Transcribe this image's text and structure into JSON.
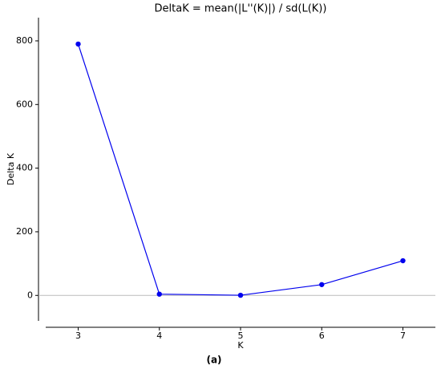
{
  "chart_data": {
    "type": "line",
    "title": "DeltaK = mean(|L''(K)|) / sd(L(K))",
    "x_label": "K",
    "y_label": "Delta K",
    "caption": "(a)",
    "x": [
      3,
      4,
      5,
      6,
      7
    ],
    "series": [
      {
        "name": "DeltaK",
        "color": "#0000ee",
        "values": [
          790,
          4,
          0.5,
          34,
          109
        ]
      }
    ],
    "xlim": [
      2.6,
      7.4
    ],
    "xticks": [
      3,
      4,
      5,
      6,
      7
    ],
    "ylim": [
      -80,
      873
    ],
    "yticks": [
      0,
      200,
      400,
      600,
      800
    ],
    "hline": 0
  }
}
